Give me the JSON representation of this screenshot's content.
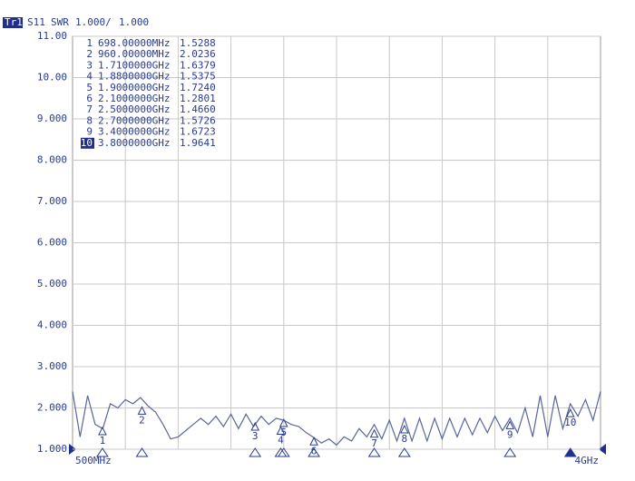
{
  "header": {
    "trace": "Tr1",
    "param": "S11",
    "format": "SWR",
    "scale": "1.000/",
    "ref": "1.000"
  },
  "chart_data": {
    "type": "line",
    "xlim": [
      500,
      4000
    ],
    "x_divisions": 10,
    "xticks": [
      {
        "value": 500,
        "label": "500MHz"
      },
      {
        "value": 4000,
        "label": "4GHz"
      }
    ],
    "ylim": [
      1,
      11
    ],
    "yticks": [
      {
        "value": 1,
        "label": "1.000"
      },
      {
        "value": 2,
        "label": "2.000"
      },
      {
        "value": 3,
        "label": "3.000"
      },
      {
        "value": 4,
        "label": "4.000"
      },
      {
        "value": 5,
        "label": "5.000"
      },
      {
        "value": 6,
        "label": "6.000"
      },
      {
        "value": 7,
        "label": "7.000"
      },
      {
        "value": 8,
        "label": "8.000"
      },
      {
        "value": 9,
        "label": "9.000"
      },
      {
        "value": 10,
        "label": "10.00"
      },
      {
        "value": 11,
        "label": "11.00"
      }
    ],
    "grid": true,
    "series": [
      {
        "color": "#5a6699",
        "x": [
          500,
          550,
          600,
          650,
          700,
          750,
          800,
          850,
          900,
          950,
          1000,
          1050,
          1100,
          1150,
          1200,
          1250,
          1300,
          1350,
          1400,
          1450,
          1500,
          1550,
          1600,
          1650,
          1700,
          1750,
          1800,
          1850,
          1900,
          1950,
          2000,
          2050,
          2100,
          2150,
          2200,
          2250,
          2300,
          2350,
          2400,
          2450,
          2500,
          2550,
          2600,
          2650,
          2700,
          2750,
          2800,
          2850,
          2900,
          2950,
          3000,
          3050,
          3100,
          3150,
          3200,
          3250,
          3300,
          3350,
          3400,
          3450,
          3500,
          3550,
          3600,
          3650,
          3700,
          3750,
          3800,
          3850,
          3900,
          3950,
          4000
        ],
        "values": [
          2.4,
          1.3,
          2.3,
          1.6,
          1.5,
          2.1,
          2.0,
          2.2,
          2.1,
          2.25,
          2.05,
          1.9,
          1.6,
          1.25,
          1.3,
          1.45,
          1.6,
          1.75,
          1.6,
          1.8,
          1.55,
          1.85,
          1.5,
          1.85,
          1.55,
          1.8,
          1.6,
          1.75,
          1.7,
          1.6,
          1.55,
          1.4,
          1.28,
          1.15,
          1.25,
          1.1,
          1.3,
          1.2,
          1.5,
          1.3,
          1.6,
          1.25,
          1.7,
          1.2,
          1.75,
          1.2,
          1.75,
          1.2,
          1.75,
          1.25,
          1.75,
          1.3,
          1.75,
          1.35,
          1.75,
          1.4,
          1.8,
          1.45,
          1.75,
          1.4,
          2.0,
          1.3,
          2.3,
          1.3,
          2.3,
          1.5,
          2.1,
          1.8,
          2.2,
          1.7,
          2.4
        ]
      }
    ],
    "markers": {
      "active": "10",
      "labels": [
        "1",
        "2",
        "3",
        "4",
        "5",
        "6",
        "7",
        "8",
        "9",
        "10"
      ],
      "x": [
        698,
        960,
        1710,
        1880,
        1900,
        2100,
        2500,
        2700,
        3400,
        3800
      ],
      "x_labels": [
        "698.00000MHz",
        "960.00000MHz",
        "1.7100000GHz",
        "1.8800000GHz",
        "1.9000000GHz",
        "2.1000000GHz",
        "2.5000000GHz",
        "2.7000000GHz",
        "3.4000000GHz",
        "3.8000000GHz"
      ],
      "values": [
        1.5288,
        2.0236,
        1.6379,
        1.5375,
        1.724,
        1.2801,
        1.466,
        1.5726,
        1.6723,
        1.9641
      ],
      "value_labels": [
        "1.5288",
        "2.0236",
        "1.6379",
        "1.5375",
        "1.7240",
        "1.2801",
        "1.4660",
        "1.5726",
        "1.6723",
        "1.9641"
      ]
    }
  }
}
